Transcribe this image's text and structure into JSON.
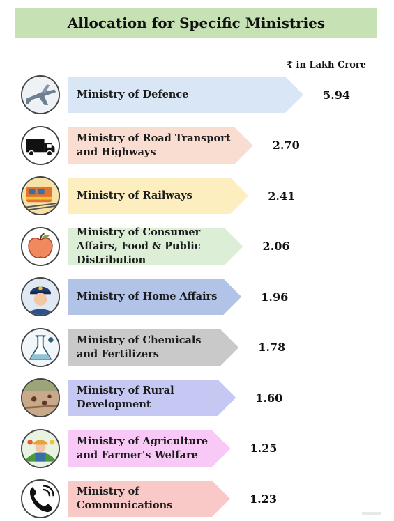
{
  "title": "Allocation for Specific Ministries",
  "unit_label": "₹ in Lakh Crore",
  "chart_data": {
    "type": "bar",
    "orientation": "horizontal",
    "title": "Allocation for Specific Ministries",
    "unit": "₹ in Lakh Crore",
    "categories": [
      "Ministry of Defence",
      "Ministry of Road Transport and Highways",
      "Ministry of Railways",
      "Ministry of Consumer Affairs, Food & Public Distribution",
      "Ministry of Home Affairs",
      "Ministry of Chemicals and Fertilizers",
      "Ministry of Rural Development",
      "Ministry of Agriculture and Farmer's Welfare",
      "Ministry of Communications"
    ],
    "values": [
      5.94,
      2.7,
      2.41,
      2.06,
      1.96,
      1.78,
      1.6,
      1.25,
      1.23
    ],
    "value_labels": [
      "5.94",
      "2.70",
      "2.41",
      "2.06",
      "1.96",
      "1.78",
      "1.60",
      "1.25",
      "1.23"
    ],
    "bar_colors": [
      "#d8e6f6",
      "#f8ddd0",
      "#fdeec0",
      "#dcefd6",
      "#b1c4e8",
      "#c9c9c9",
      "#c6c8f4",
      "#f8c9f6",
      "#f8c9c7"
    ],
    "icons": [
      "jet-icon",
      "truck-icon",
      "train-icon",
      "apple-icon",
      "police-icon",
      "lab-icon",
      "field-icon",
      "farmer-icon",
      "phone-icon"
    ]
  }
}
